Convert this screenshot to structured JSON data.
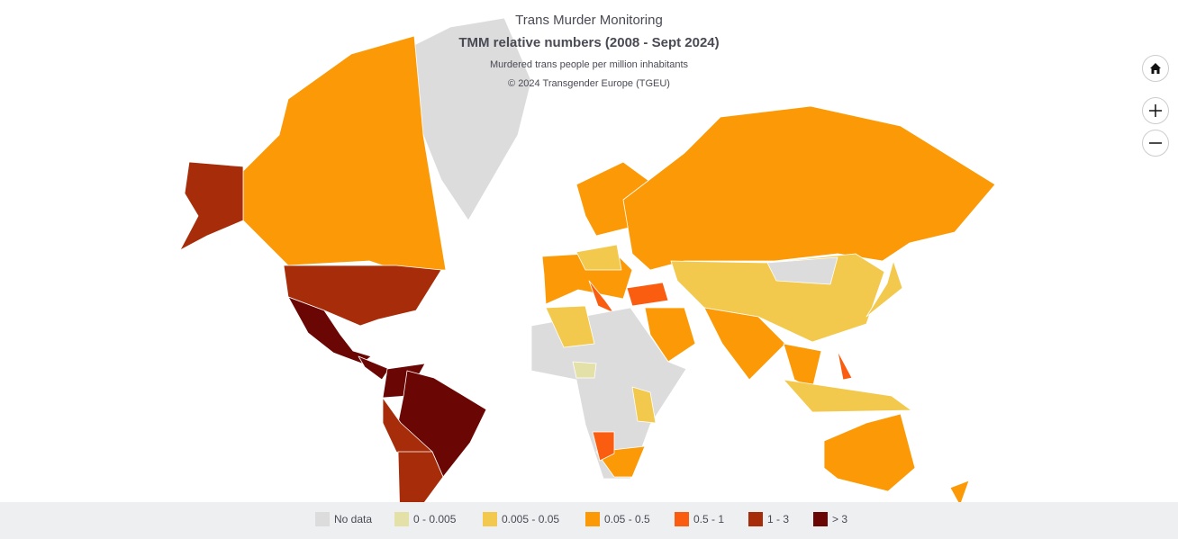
{
  "header": {
    "title": "Trans Murder Monitoring",
    "subtitle": "TMM relative numbers (2008 - Sept 2024)",
    "caption": "Murdered trans people per million inhabitants",
    "copyright": "© 2024 Transgender Europe (TGEU)"
  },
  "legend": {
    "items": [
      {
        "label": "No data",
        "color": "#dcdcdc"
      },
      {
        "label": "0 - 0.005",
        "color": "#e3e0a8"
      },
      {
        "label": "0.005 - 0.05",
        "color": "#f2c94c"
      },
      {
        "label": "0.05 - 0.5",
        "color": "#fb9a06"
      },
      {
        "label": "0.5 - 1",
        "color": "#fa5c10"
      },
      {
        "label": "1 - 3",
        "color": "#a62c0a"
      },
      {
        "label": "> 3",
        "color": "#6a0604"
      }
    ]
  }
}
